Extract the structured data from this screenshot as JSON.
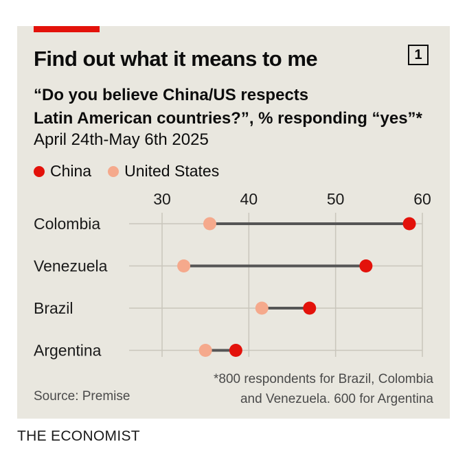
{
  "header": {
    "title": "Find out what it means to me",
    "badge": "1",
    "subtitle_line1": "“Do you believe China/US respects",
    "subtitle_line2": "Latin American countries?”, % responding “yes”*",
    "date": "April 24th-May 6th 2025"
  },
  "footer": {
    "footnote_line1": "*800 respondents for Brazil, Colombia",
    "footnote_line2": "and Venezuela. 600 for Argentina",
    "source": "Source: Premise",
    "brand": "THE ECONOMIST"
  },
  "colors": {
    "accent": "#e3120b",
    "china": "#e3120b",
    "united_states": "#f5a98c",
    "connector": "#555555",
    "background": "#e9e7df"
  },
  "chart_data": {
    "type": "dot",
    "categories": [
      "Colombia",
      "Venezuela",
      "Brazil",
      "Argentina"
    ],
    "series": [
      {
        "name": "China",
        "values": [
          58.5,
          53.5,
          47,
          38.5
        ]
      },
      {
        "name": "United States",
        "values": [
          35.5,
          32.5,
          41.5,
          35
        ]
      }
    ],
    "x_ticks": [
      30,
      40,
      50,
      60
    ],
    "xlim": [
      30,
      60
    ],
    "grid": true,
    "legend_position": "top-left"
  }
}
